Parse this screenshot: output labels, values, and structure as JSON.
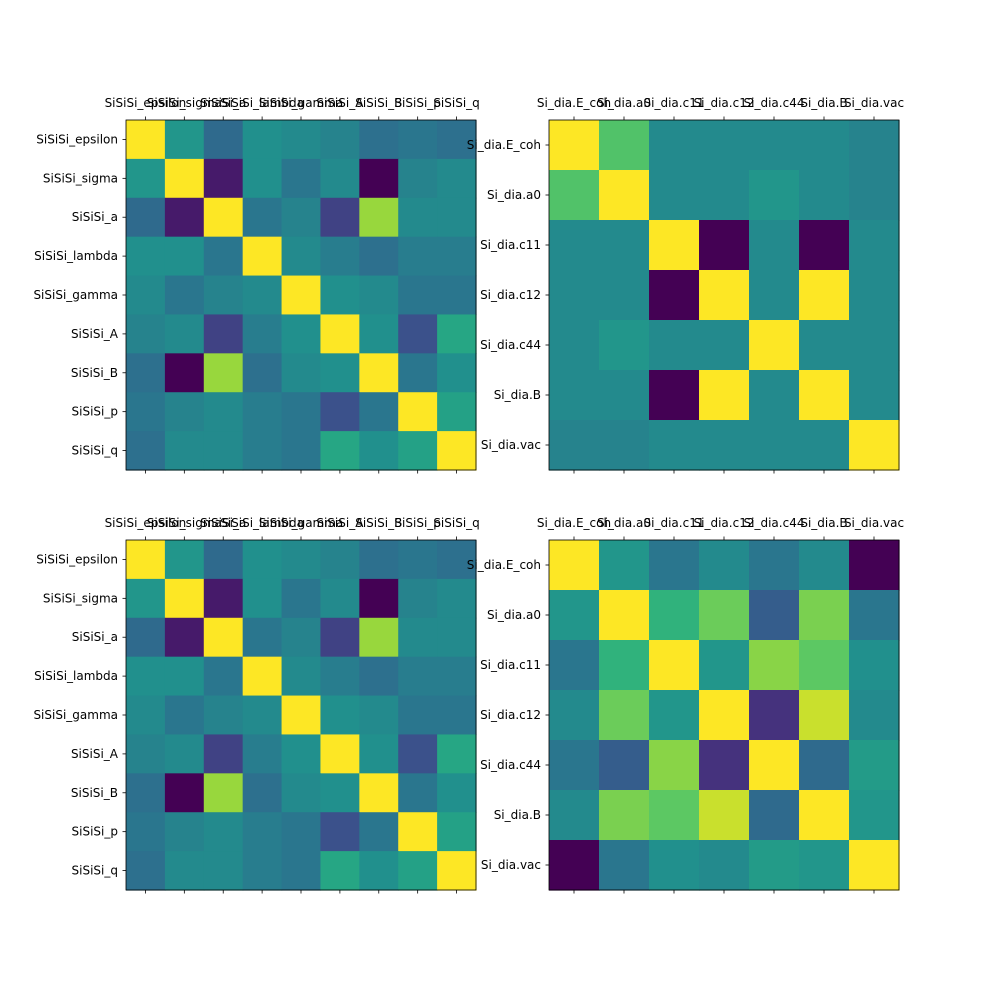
{
  "chart_data": [
    {
      "type": "heatmap",
      "title": "",
      "xlabel": "",
      "ylabel": "",
      "colormap": "viridis",
      "vrange": [
        -1,
        1
      ],
      "grid": false,
      "labels": [
        "SiSiSi_epsilon",
        "SiSiSi_sigma",
        "SiSiSi_a",
        "SiSiSi_lambda",
        "SiSiSi_gamma",
        "SiSiSi_A",
        "SiSiSi_B",
        "SiSiSi_p",
        "SiSiSi_q"
      ],
      "values": [
        [
          1.0,
          0.05,
          -0.3,
          0.0,
          -0.05,
          -0.1,
          -0.25,
          -0.2,
          -0.25
        ],
        [
          0.05,
          1.0,
          -0.85,
          0.0,
          -0.2,
          -0.05,
          -1.0,
          -0.1,
          -0.05
        ],
        [
          -0.3,
          -0.85,
          1.0,
          -0.2,
          -0.1,
          -0.6,
          0.7,
          -0.05,
          -0.05
        ],
        [
          0.0,
          0.0,
          -0.2,
          1.0,
          -0.05,
          -0.15,
          -0.25,
          -0.15,
          -0.15
        ],
        [
          -0.05,
          -0.2,
          -0.1,
          -0.05,
          1.0,
          0.0,
          -0.05,
          -0.2,
          -0.2
        ],
        [
          -0.1,
          -0.05,
          -0.6,
          -0.15,
          0.0,
          1.0,
          0.0,
          -0.5,
          0.2
        ],
        [
          -0.25,
          -1.0,
          0.7,
          -0.25,
          -0.05,
          0.0,
          1.0,
          -0.2,
          0.0
        ],
        [
          -0.2,
          -0.1,
          -0.05,
          -0.15,
          -0.2,
          -0.5,
          -0.2,
          1.0,
          0.15
        ],
        [
          -0.25,
          -0.05,
          -0.05,
          -0.15,
          -0.2,
          0.2,
          0.0,
          0.15,
          1.0
        ]
      ]
    },
    {
      "type": "heatmap",
      "title": "",
      "xlabel": "",
      "ylabel": "",
      "colormap": "viridis",
      "vrange": [
        -1,
        1
      ],
      "grid": false,
      "labels": [
        "Si_dia.E_coh",
        "Si_dia.a0",
        "Si_dia.c11",
        "Si_dia.c12",
        "Si_dia.c44",
        "Si_dia.B",
        "Si_dia.vac"
      ],
      "values": [
        [
          1.0,
          0.45,
          -0.05,
          -0.05,
          -0.05,
          -0.05,
          -0.1
        ],
        [
          0.45,
          1.0,
          -0.05,
          -0.05,
          0.05,
          -0.05,
          -0.1
        ],
        [
          -0.05,
          -0.05,
          1.0,
          -1.0,
          -0.05,
          -1.0,
          -0.05
        ],
        [
          -0.05,
          -0.05,
          -1.0,
          1.0,
          -0.05,
          1.0,
          -0.05
        ],
        [
          -0.05,
          0.05,
          -0.05,
          -0.05,
          1.0,
          -0.05,
          -0.05
        ],
        [
          -0.05,
          -0.05,
          -1.0,
          1.0,
          -0.05,
          1.0,
          -0.05
        ],
        [
          -0.1,
          -0.1,
          -0.05,
          -0.05,
          -0.05,
          -0.05,
          1.0
        ]
      ]
    },
    {
      "type": "heatmap",
      "title": "",
      "xlabel": "",
      "ylabel": "",
      "colormap": "viridis",
      "vrange": [
        -1,
        1
      ],
      "grid": false,
      "labels": [
        "SiSiSi_epsilon",
        "SiSiSi_sigma",
        "SiSiSi_a",
        "SiSiSi_lambda",
        "SiSiSi_gamma",
        "SiSiSi_A",
        "SiSiSi_B",
        "SiSiSi_p",
        "SiSiSi_q"
      ],
      "values": [
        [
          1.0,
          0.05,
          -0.3,
          0.0,
          -0.05,
          -0.1,
          -0.25,
          -0.2,
          -0.25
        ],
        [
          0.05,
          1.0,
          -0.85,
          0.0,
          -0.2,
          -0.05,
          -1.0,
          -0.1,
          -0.05
        ],
        [
          -0.3,
          -0.85,
          1.0,
          -0.2,
          -0.1,
          -0.6,
          0.7,
          -0.05,
          -0.05
        ],
        [
          0.0,
          0.0,
          -0.2,
          1.0,
          -0.05,
          -0.15,
          -0.25,
          -0.15,
          -0.15
        ],
        [
          -0.05,
          -0.2,
          -0.1,
          -0.05,
          1.0,
          0.0,
          -0.05,
          -0.2,
          -0.2
        ],
        [
          -0.1,
          -0.05,
          -0.6,
          -0.15,
          0.0,
          1.0,
          0.0,
          -0.5,
          0.2
        ],
        [
          -0.25,
          -1.0,
          0.7,
          -0.25,
          -0.05,
          0.0,
          1.0,
          -0.2,
          0.0
        ],
        [
          -0.2,
          -0.1,
          -0.05,
          -0.15,
          -0.2,
          -0.5,
          -0.2,
          1.0,
          0.15
        ],
        [
          -0.25,
          -0.05,
          -0.05,
          -0.15,
          -0.2,
          0.2,
          0.0,
          0.15,
          1.0
        ]
      ]
    },
    {
      "type": "heatmap",
      "title": "",
      "xlabel": "",
      "ylabel": "",
      "colormap": "viridis",
      "vrange": [
        -1,
        1
      ],
      "grid": false,
      "labels": [
        "Si_dia.E_coh",
        "Si_dia.a0",
        "Si_dia.c11",
        "Si_dia.c12",
        "Si_dia.c44",
        "Si_dia.B",
        "Si_dia.vac"
      ],
      "values": [
        [
          1.0,
          0.05,
          -0.2,
          -0.05,
          -0.2,
          -0.05,
          -1.0
        ],
        [
          0.05,
          1.0,
          0.3,
          0.55,
          -0.4,
          0.6,
          -0.2
        ],
        [
          -0.2,
          0.3,
          1.0,
          0.05,
          0.65,
          0.5,
          0.0
        ],
        [
          -0.05,
          0.55,
          0.05,
          1.0,
          -0.7,
          0.85,
          -0.05
        ],
        [
          -0.2,
          -0.4,
          0.65,
          -0.7,
          1.0,
          -0.3,
          0.1
        ],
        [
          -0.05,
          0.6,
          0.5,
          0.85,
          -0.3,
          1.0,
          0.05
        ],
        [
          -1.0,
          -0.2,
          0.0,
          -0.05,
          0.1,
          0.05,
          1.0
        ]
      ]
    }
  ]
}
